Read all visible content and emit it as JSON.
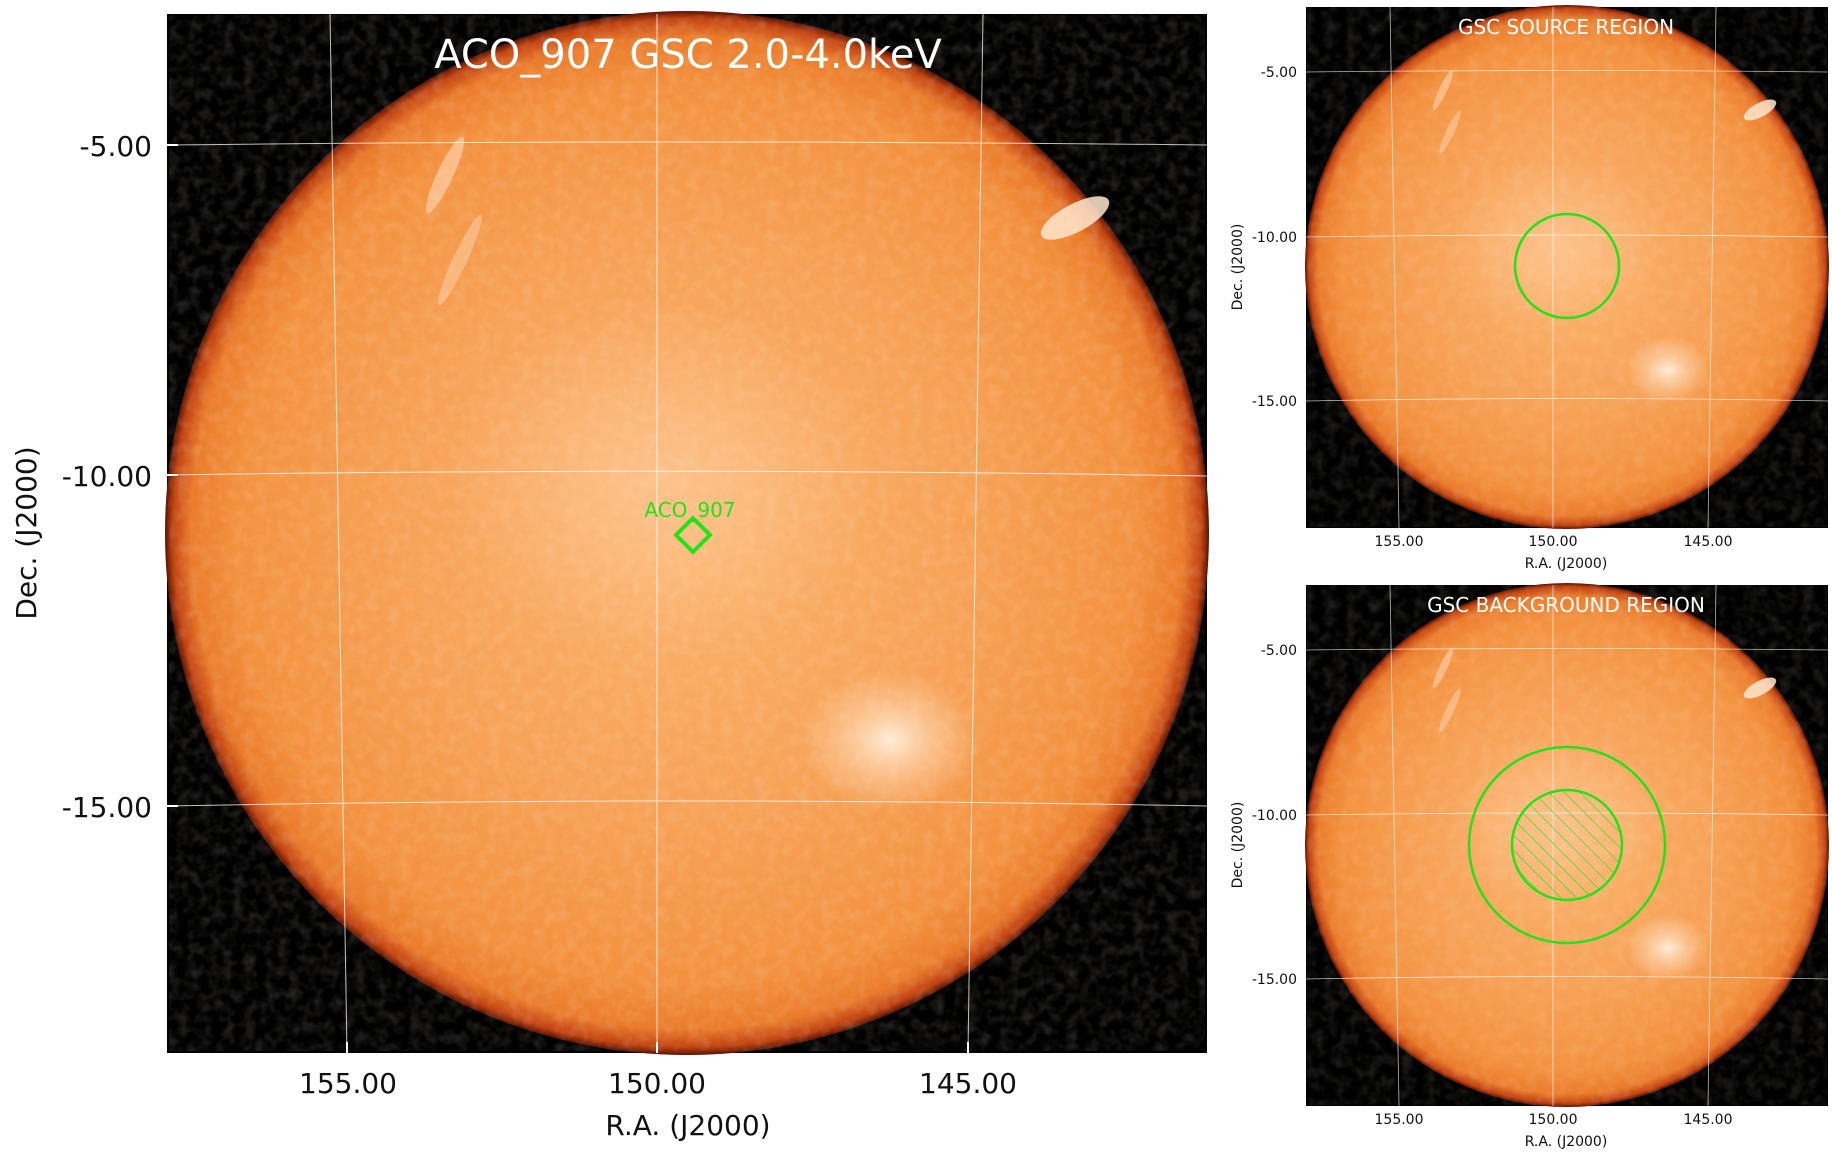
{
  "main_panel": {
    "title": "ACO_907 GSC 2.0-4.0keV",
    "source_label": "ACO_907",
    "xlabel": "R.A. (J2000)",
    "ylabel": "Dec. (J2000)",
    "xticks": [
      "155.00",
      "150.00",
      "145.00"
    ],
    "yticks": [
      "-5.00",
      "-10.00",
      "-15.00"
    ]
  },
  "source_panel": {
    "title": "GSC SOURCE REGION",
    "xlabel": "R.A. (J2000)",
    "ylabel": "Dec. (J2000)",
    "xticks": [
      "155.00",
      "150.00",
      "145.00"
    ],
    "yticks": [
      "-5.00",
      "-10.00",
      "-15.00"
    ]
  },
  "background_panel": {
    "title": "GSC BACKGROUND REGION",
    "xlabel": "R.A. (J2000)",
    "ylabel": "Dec. (J2000)",
    "xticks": [
      "155.00",
      "150.00",
      "145.00"
    ],
    "yticks": [
      "-5.00",
      "-10.00",
      "-15.00"
    ]
  },
  "colors": {
    "sky": "#f59a4a",
    "rim": "#b83208",
    "background": "#000000",
    "region": "#22e31a",
    "grid": "#ffffff"
  }
}
